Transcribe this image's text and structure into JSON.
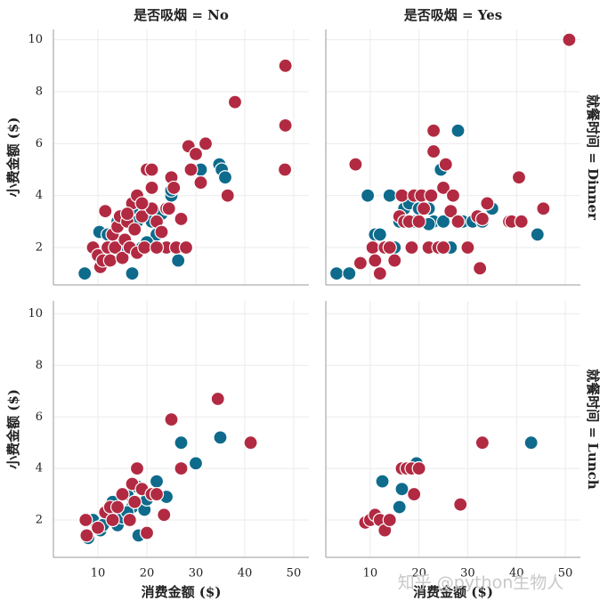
{
  "chart_data": [
    {
      "type": "scatter",
      "col_title": "是否吸烟 = No",
      "ylabel": "小费金额 ($)",
      "xlim": [
        0.9,
        53.1
      ],
      "ylim": [
        0.56,
        10.4
      ],
      "xticks": [
        10,
        20,
        30,
        40,
        50
      ],
      "yticks": [
        2,
        4,
        6,
        8,
        10
      ],
      "grid": true,
      "series": [
        {
          "color": "#0e6b8c",
          "x": [
            7.3,
            10.3,
            12,
            14,
            15,
            16,
            17,
            17,
            18,
            19,
            20,
            21,
            22,
            23,
            24,
            25,
            26.4,
            34.8,
            35.3,
            36,
            25,
            21,
            31,
            18,
            20,
            11,
            13
          ],
          "values": [
            1.0,
            2.6,
            2.5,
            3,
            3.2,
            2,
            1.0,
            3.5,
            3,
            2,
            3.5,
            3,
            2.5,
            3.3,
            3.5,
            4,
            1.5,
            5.2,
            5,
            4.7,
            4.2,
            5,
            5,
            4,
            2.2,
            1.7,
            2.5
          ]
        },
        {
          "color": "#b22a42",
          "x": [
            9,
            10,
            10.5,
            11,
            11.5,
            12,
            12.5,
            13,
            13.5,
            14,
            14.5,
            15,
            15.5,
            16,
            16.5,
            17,
            17.5,
            18,
            18,
            19,
            19.5,
            20,
            21,
            21,
            21,
            22,
            23,
            24,
            24,
            24.5,
            25,
            25.5,
            26,
            27,
            28,
            28.5,
            29,
            30,
            31,
            32,
            36.5,
            38,
            48.3,
            48.3,
            48.2,
            16,
            19,
            22
          ],
          "values": [
            2,
            1.7,
            1.25,
            1.5,
            3.4,
            2,
            1.5,
            2.5,
            2,
            2.8,
            3.2,
            1.6,
            2.3,
            3,
            2,
            3.7,
            2.7,
            4,
            1.8,
            3.2,
            2,
            5,
            5,
            4.3,
            3.5,
            3,
            2.6,
            3.5,
            2,
            3.5,
            4.7,
            4.3,
            2,
            3.1,
            2,
            5.9,
            5,
            5.6,
            4.5,
            6,
            4,
            7.6,
            9,
            6.7,
            5,
            3.3,
            3.7,
            2
          ]
        }
      ]
    },
    {
      "type": "scatter",
      "col_title": "是否吸烟 = Yes",
      "row_title": "就餐时间 = Dinner",
      "xlim": [
        0.9,
        53.1
      ],
      "ylim": [
        0.56,
        10.4
      ],
      "xticks": [
        10,
        20,
        30,
        40,
        50
      ],
      "yticks": [
        2,
        4,
        6,
        8,
        10
      ],
      "grid": true,
      "series": [
        {
          "color": "#0e6b8c",
          "x": [
            3.1,
            5.7,
            9.5,
            10.5,
            11,
            12,
            13,
            14,
            15,
            16,
            17,
            18,
            19,
            20,
            22,
            23,
            24.5,
            25,
            26.5,
            28,
            29,
            31,
            33,
            35,
            44.3,
            22
          ],
          "values": [
            1,
            1,
            4,
            2,
            2.5,
            2.5,
            2,
            4,
            2,
            3,
            3.5,
            3.7,
            3,
            3.5,
            3.5,
            3,
            5,
            3,
            2,
            6.5,
            3,
            3,
            3,
            3.5,
            2.5,
            2.9
          ]
        },
        {
          "color": "#b22a42",
          "x": [
            7,
            8,
            10.5,
            11,
            12,
            13,
            14,
            15,
            16,
            16.5,
            17,
            18,
            18.5,
            19,
            20,
            20.5,
            21,
            22,
            22.5,
            23,
            23,
            24,
            25,
            25,
            25.5,
            26.5,
            27,
            28,
            30,
            32,
            32.5,
            33,
            34,
            38.5,
            39,
            40.5,
            41,
            45.5,
            50.8
          ],
          "values": [
            5.2,
            1.4,
            2,
            1.5,
            1.0,
            2,
            2,
            1.5,
            3.2,
            4,
            3,
            3,
            2,
            4,
            3,
            4,
            3.5,
            2,
            4,
            6.5,
            5.7,
            2,
            4.3,
            2,
            5.2,
            3.4,
            4,
            3,
            2,
            3.2,
            1.2,
            3.1,
            3.7,
            3,
            3,
            4.7,
            3,
            3.5,
            10
          ]
        }
      ]
    },
    {
      "type": "scatter",
      "ylabel": "小费金额 ($)",
      "xlabel": "消费金额 ($)",
      "xlim": [
        0.9,
        53.1
      ],
      "ylim": [
        0.55,
        10.5
      ],
      "xticks": [
        10,
        20,
        30,
        40,
        50
      ],
      "yticks": [
        2,
        4,
        6,
        8,
        10
      ],
      "grid": true,
      "series": [
        {
          "color": "#0e6b8c",
          "x": [
            8,
            9,
            10.5,
            11,
            12,
            13,
            14,
            15,
            16,
            17,
            18,
            18.3,
            19.5,
            20,
            21,
            22,
            24,
            27,
            30,
            35,
            16
          ],
          "values": [
            1.3,
            2,
            1.6,
            1.8,
            2.3,
            2.7,
            1.8,
            2.1,
            3,
            2.5,
            3.3,
            1.4,
            2.4,
            2.8,
            3,
            3.5,
            2.9,
            5,
            4.2,
            5.2,
            2.3
          ]
        },
        {
          "color": "#b22a42",
          "x": [
            7.5,
            7.7,
            10,
            11.5,
            12.5,
            13,
            14,
            15,
            16.5,
            17,
            17.5,
            18,
            19,
            20,
            21,
            22,
            23.5,
            25,
            27,
            34.5,
            41.2
          ],
          "values": [
            2,
            1.4,
            1.7,
            2.3,
            2.5,
            2,
            2.5,
            3,
            2,
            3.4,
            2.7,
            4,
            3.2,
            1.5,
            3,
            3,
            2.2,
            5.9,
            4,
            6.7,
            5
          ]
        }
      ]
    },
    {
      "type": "scatter",
      "row_title": "就餐时间 = Lunch",
      "xlabel": "消费金额 ($)",
      "xlim": [
        0.9,
        53.1
      ],
      "ylim": [
        0.55,
        10.5
      ],
      "xticks": [
        10,
        20,
        30,
        40,
        50
      ],
      "yticks": [
        2,
        4,
        6,
        8,
        10
      ],
      "grid": true,
      "series": [
        {
          "color": "#0e6b8c",
          "x": [
            12.5,
            13,
            16,
            16.5,
            19.5,
            20,
            43
          ],
          "values": [
            3.5,
            1.6,
            2.5,
            3.2,
            4.2,
            4,
            5
          ]
        },
        {
          "color": "#b22a42",
          "x": [
            9,
            10,
            11,
            12,
            13,
            14,
            16.5,
            17.5,
            18.5,
            19,
            20,
            28.5,
            33
          ],
          "values": [
            1.9,
            2,
            2.2,
            2,
            1.6,
            2,
            4,
            4,
            4,
            3,
            4,
            2.6,
            5
          ]
        }
      ]
    }
  ],
  "watermark": "知乎 @python生物人"
}
